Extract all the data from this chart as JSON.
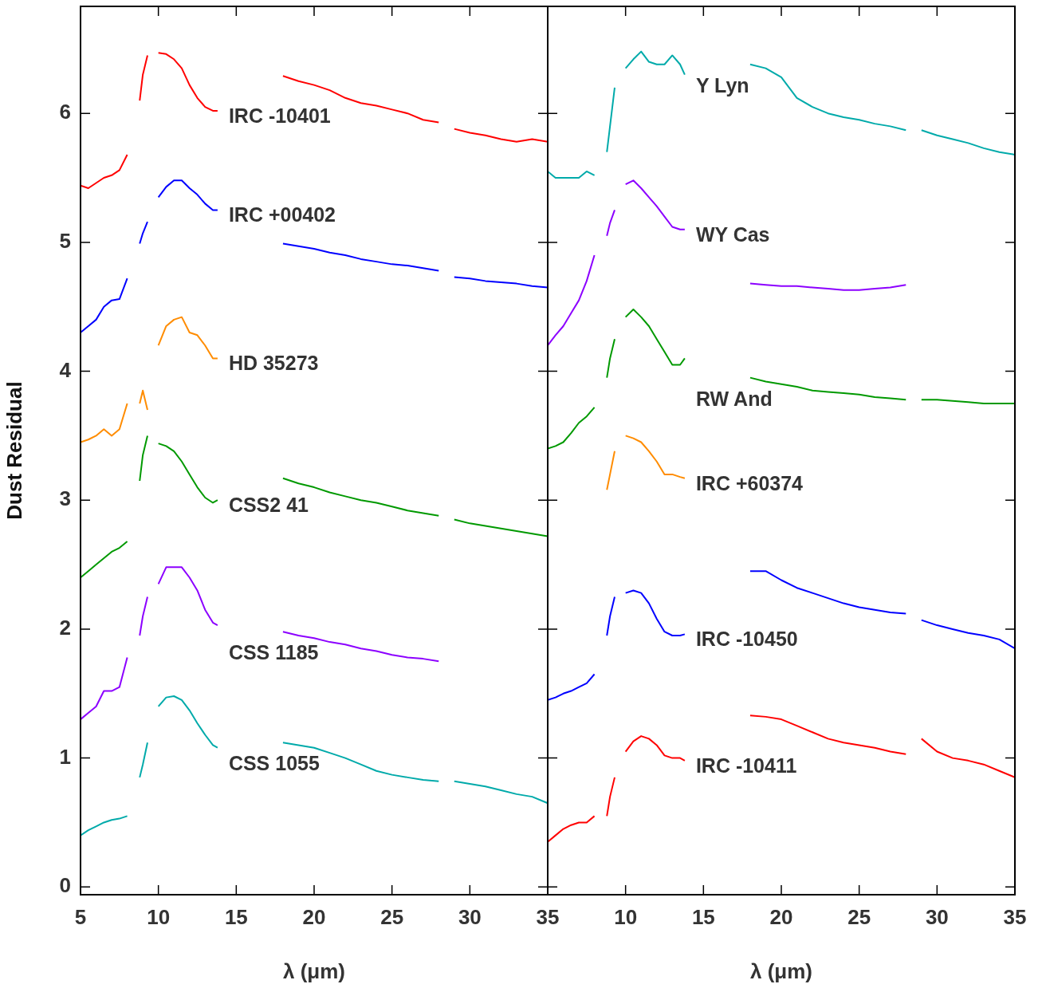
{
  "chart_data": [
    {
      "type": "line",
      "xlabel": "λ (μm)",
      "ylabel": "Dust Residual",
      "xlim": [
        5,
        35
      ],
      "ylim": [
        -0.06,
        6.83
      ],
      "xticks": [
        5,
        10,
        15,
        20,
        25,
        30,
        35
      ],
      "yticks": [
        0,
        1,
        2,
        3,
        4,
        5,
        6
      ],
      "grid": false,
      "legend": false,
      "marker": "none",
      "line_style": "solid",
      "x": [
        5,
        5.5,
        6,
        6.5,
        7,
        7.5,
        8,
        8.4,
        8.8,
        9.0,
        9.3,
        9.6,
        10,
        10.5,
        11,
        11.5,
        12,
        12.5,
        13,
        13.5,
        13.8,
        16,
        18,
        19,
        20,
        21,
        22,
        23,
        24,
        25,
        26,
        27,
        28,
        28.5,
        29,
        30,
        31,
        32,
        33,
        34,
        35
      ],
      "series": [
        {
          "name": "IRC -10401",
          "color": "#ff0000",
          "values": [
            5.44,
            5.42,
            5.46,
            5.5,
            5.52,
            5.56,
            5.68,
            null,
            6.1,
            6.3,
            6.45,
            null,
            6.47,
            6.46,
            6.42,
            6.35,
            6.22,
            6.12,
            6.05,
            6.02,
            6.02,
            null,
            6.29,
            6.25,
            6.22,
            6.18,
            6.12,
            6.08,
            6.06,
            6.03,
            6.0,
            5.95,
            5.93,
            null,
            5.88,
            5.85,
            5.83,
            5.8,
            5.78,
            5.8,
            5.78
          ]
        },
        {
          "name": "IRC +00402",
          "color": "#0000ff",
          "values": [
            4.3,
            4.35,
            4.4,
            4.5,
            4.55,
            4.56,
            4.72,
            null,
            4.99,
            5.07,
            5.16,
            null,
            5.35,
            5.43,
            5.48,
            5.48,
            5.42,
            5.37,
            5.3,
            5.25,
            5.25,
            null,
            4.99,
            4.97,
            4.95,
            4.92,
            4.9,
            4.87,
            4.85,
            4.83,
            4.82,
            4.8,
            4.78,
            null,
            4.73,
            4.72,
            4.7,
            4.69,
            4.68,
            4.66,
            4.65
          ]
        },
        {
          "name": "HD 35273",
          "color": "#ff8c00",
          "values": [
            3.45,
            3.47,
            3.5,
            3.55,
            3.5,
            3.55,
            3.75,
            null,
            3.75,
            3.85,
            3.7,
            null,
            4.2,
            4.35,
            4.4,
            4.42,
            4.3,
            4.28,
            4.2,
            4.1,
            4.1,
            null,
            null,
            null,
            null,
            null,
            null,
            null,
            null,
            null,
            null,
            null,
            null,
            null,
            null,
            null,
            null,
            null,
            null,
            null,
            null
          ]
        },
        {
          "name": "CSS2 41",
          "color": "#009900",
          "values": [
            2.4,
            2.45,
            2.5,
            2.55,
            2.6,
            2.63,
            2.68,
            null,
            3.15,
            3.35,
            3.5,
            null,
            3.44,
            3.42,
            3.38,
            3.3,
            3.2,
            3.1,
            3.02,
            2.98,
            3.0,
            null,
            3.17,
            3.13,
            3.1,
            3.06,
            3.03,
            3.0,
            2.98,
            2.95,
            2.92,
            2.9,
            2.88,
            null,
            2.85,
            2.82,
            2.8,
            2.78,
            2.76,
            2.74,
            2.72
          ]
        },
        {
          "name": "CSS 1185",
          "color": "#8c00ff",
          "values": [
            1.3,
            1.35,
            1.4,
            1.52,
            1.52,
            1.55,
            1.78,
            null,
            1.95,
            2.1,
            2.25,
            null,
            2.35,
            2.48,
            2.48,
            2.48,
            2.4,
            2.3,
            2.15,
            2.05,
            2.03,
            null,
            1.98,
            1.95,
            1.93,
            1.9,
            1.88,
            1.85,
            1.83,
            1.8,
            1.78,
            1.77,
            1.75,
            null,
            null,
            null,
            null,
            null,
            null,
            null,
            null
          ]
        },
        {
          "name": "CSS 1055",
          "color": "#00aaaa",
          "values": [
            0.4,
            0.44,
            0.47,
            0.5,
            0.52,
            0.53,
            0.55,
            null,
            0.85,
            0.95,
            1.12,
            null,
            1.4,
            1.47,
            1.48,
            1.45,
            1.37,
            1.27,
            1.18,
            1.1,
            1.08,
            null,
            1.12,
            1.1,
            1.08,
            1.04,
            1.0,
            0.95,
            0.9,
            0.87,
            0.85,
            0.83,
            0.82,
            null,
            0.82,
            0.8,
            0.78,
            0.75,
            0.72,
            0.7,
            0.65
          ]
        }
      ]
    },
    {
      "type": "line",
      "xlabel": "λ (μm)",
      "xlim": [
        5,
        35
      ],
      "ylim": [
        -0.06,
        6.83
      ],
      "xticks": [
        10,
        15,
        20,
        25,
        30,
        35
      ],
      "yticks": [
        0,
        1,
        2,
        3,
        4,
        5,
        6
      ],
      "tick_labels": "x",
      "grid": false,
      "legend": false,
      "marker": "none",
      "line_style": "solid",
      "x": [
        5,
        5.5,
        6,
        6.5,
        7,
        7.5,
        8,
        8.4,
        8.8,
        9.0,
        9.3,
        9.6,
        10,
        10.5,
        11,
        11.5,
        12,
        12.5,
        13,
        13.5,
        13.8,
        16,
        18,
        19,
        20,
        21,
        22,
        23,
        24,
        25,
        26,
        27,
        28,
        28.5,
        29,
        30,
        31,
        32,
        33,
        34,
        35
      ],
      "series": [
        {
          "name": "Y Lyn",
          "color": "#00aaaa",
          "values": [
            5.55,
            5.5,
            5.5,
            5.5,
            5.5,
            5.55,
            5.52,
            null,
            5.7,
            5.9,
            6.2,
            null,
            6.35,
            6.42,
            6.48,
            6.4,
            6.38,
            6.38,
            6.45,
            6.38,
            6.3,
            null,
            6.38,
            6.35,
            6.28,
            6.12,
            6.05,
            6.0,
            5.97,
            5.95,
            5.92,
            5.9,
            5.87,
            null,
            5.87,
            5.83,
            5.8,
            5.77,
            5.73,
            5.7,
            5.68
          ]
        },
        {
          "name": "WY Cas",
          "color": "#8c00ff",
          "values": [
            4.2,
            4.28,
            4.35,
            4.45,
            4.55,
            4.7,
            4.9,
            null,
            5.05,
            5.15,
            5.25,
            null,
            5.45,
            5.48,
            5.42,
            5.35,
            5.28,
            5.2,
            5.12,
            5.1,
            5.1,
            null,
            4.68,
            4.67,
            4.66,
            4.66,
            4.65,
            4.64,
            4.63,
            4.63,
            4.64,
            4.65,
            4.67,
            null,
            null,
            null,
            null,
            null,
            null,
            null,
            null
          ]
        },
        {
          "name": "RW And",
          "color": "#009900",
          "values": [
            3.4,
            3.42,
            3.45,
            3.52,
            3.6,
            3.65,
            3.72,
            null,
            3.95,
            4.1,
            4.25,
            null,
            4.42,
            4.48,
            4.42,
            4.35,
            4.25,
            4.15,
            4.05,
            4.05,
            4.1,
            null,
            3.95,
            3.92,
            3.9,
            3.88,
            3.85,
            3.84,
            3.83,
            3.82,
            3.8,
            3.79,
            3.78,
            null,
            3.78,
            3.78,
            3.77,
            3.76,
            3.75,
            3.75,
            3.75
          ]
        },
        {
          "name": "IRC +60374",
          "color": "#ff8c00",
          "values": [
            null,
            null,
            null,
            null,
            null,
            null,
            null,
            null,
            3.08,
            3.2,
            3.38,
            null,
            3.5,
            3.48,
            3.45,
            3.38,
            3.3,
            3.2,
            3.2,
            3.18,
            3.17,
            null,
            null,
            null,
            null,
            null,
            null,
            null,
            null,
            null,
            null,
            null,
            null,
            null,
            null,
            null,
            null,
            null,
            null,
            null,
            null
          ]
        },
        {
          "name": "IRC -10450",
          "color": "#0000ff",
          "values": [
            1.45,
            1.47,
            1.5,
            1.52,
            1.55,
            1.58,
            1.65,
            null,
            1.95,
            2.1,
            2.25,
            null,
            2.28,
            2.3,
            2.28,
            2.2,
            2.08,
            1.98,
            1.95,
            1.95,
            1.96,
            null,
            2.45,
            2.45,
            2.38,
            2.32,
            2.28,
            2.24,
            2.2,
            2.17,
            2.15,
            2.13,
            2.12,
            null,
            2.07,
            2.03,
            2.0,
            1.97,
            1.95,
            1.92,
            1.85
          ]
        },
        {
          "name": "IRC -10411",
          "color": "#ff0000",
          "values": [
            0.35,
            0.4,
            0.45,
            0.48,
            0.5,
            0.5,
            0.55,
            null,
            0.55,
            0.7,
            0.85,
            null,
            1.05,
            1.13,
            1.17,
            1.15,
            1.1,
            1.02,
            1.0,
            1.0,
            0.98,
            null,
            1.33,
            1.32,
            1.3,
            1.25,
            1.2,
            1.15,
            1.12,
            1.1,
            1.08,
            1.05,
            1.03,
            null,
            1.15,
            1.05,
            1.0,
            0.98,
            0.95,
            0.9,
            0.85
          ]
        }
      ]
    }
  ]
}
